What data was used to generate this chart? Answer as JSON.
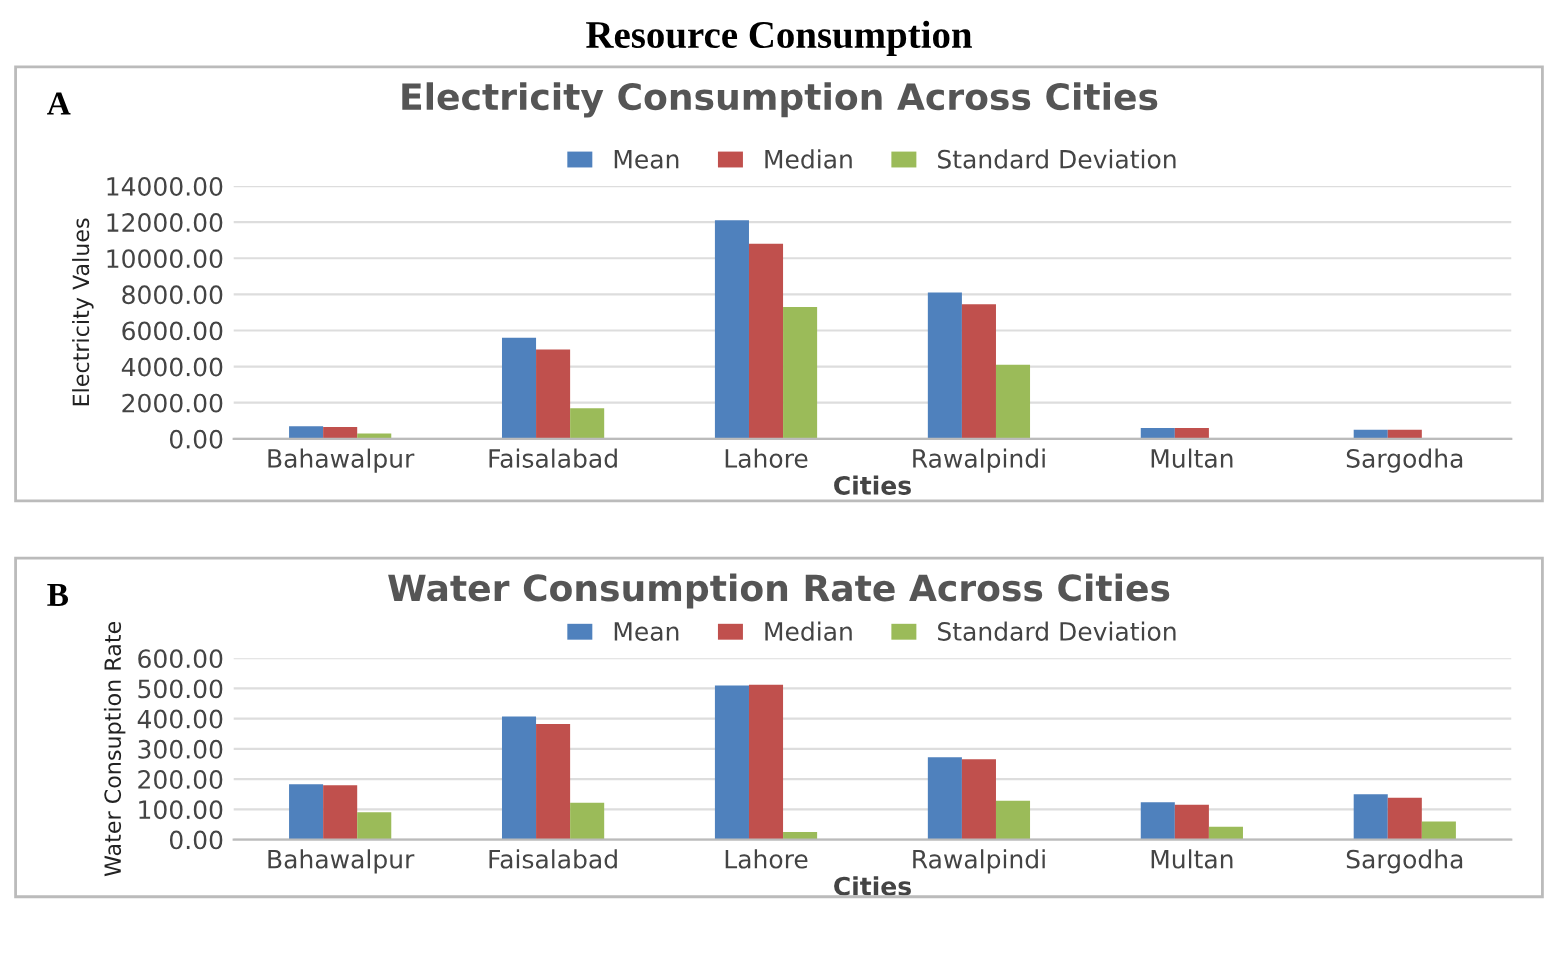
{
  "chart_data": [
    {
      "type": "bar",
      "title": "Electricity Consumption Across Cities",
      "xlabel": "Cities",
      "ylabel": "Electricity Values",
      "annotations": [
        "Resource Consumption",
        "A"
      ],
      "categories": [
        "Bahawalpur",
        "Faisalabad",
        "Lahore",
        "Rawalpindi",
        "Multan",
        "Sargodha"
      ],
      "series": [
        {
          "name": "Mean",
          "color": "#4f81bd",
          "values": [
            700,
            5600,
            12100,
            8100,
            600,
            500
          ]
        },
        {
          "name": "Median",
          "color": "#c0504d",
          "values": [
            650,
            4950,
            10800,
            7450,
            600,
            500
          ]
        },
        {
          "name": "Standard Deviation",
          "color": "#9bbb59",
          "values": [
            300,
            1700,
            7300,
            4100,
            null,
            null
          ]
        }
      ],
      "ylim": [
        0,
        14000
      ],
      "yticks": [
        {
          "value": 0,
          "label": "0.00"
        },
        {
          "value": 2000,
          "label": "2000.00"
        },
        {
          "value": 4000,
          "label": "4000.00"
        },
        {
          "value": 6000,
          "label": "6000.00"
        },
        {
          "value": 8000,
          "label": "8000.00"
        },
        {
          "value": 10000,
          "label": "10000.00"
        },
        {
          "value": 12000,
          "label": "12000.00"
        },
        {
          "value": 14000,
          "label": "14000.00"
        }
      ],
      "grid": "y",
      "legend": "top"
    },
    {
      "type": "bar",
      "title": "Water Consumption Rate Across Cities",
      "xlabel": "Cities",
      "ylabel": "Water Consuption Rate",
      "annotations": [
        "B"
      ],
      "categories": [
        "Bahawalpur",
        "Faisalabad",
        "Lahore",
        "Rawalpindi",
        "Multan",
        "Sargodha"
      ],
      "series": [
        {
          "name": "Mean",
          "color": "#4f81bd",
          "values": [
            183,
            407,
            510,
            272,
            123,
            150
          ]
        },
        {
          "name": "Median",
          "color": "#c0504d",
          "values": [
            180,
            382,
            512,
            266,
            115,
            138
          ]
        },
        {
          "name": "Standard Deviation",
          "color": "#9bbb59",
          "values": [
            90,
            122,
            25,
            128,
            42,
            60
          ]
        }
      ],
      "ylim": [
        0,
        600
      ],
      "yticks": [
        {
          "value": 0,
          "label": "0.00"
        },
        {
          "value": 100,
          "label": "100.00"
        },
        {
          "value": 200,
          "label": "200.00"
        },
        {
          "value": 300,
          "label": "300.00"
        },
        {
          "value": 400,
          "label": "400.00"
        },
        {
          "value": 500,
          "label": "500.00"
        },
        {
          "value": 600,
          "label": "600.00"
        }
      ],
      "grid": "y",
      "legend": "top"
    }
  ]
}
